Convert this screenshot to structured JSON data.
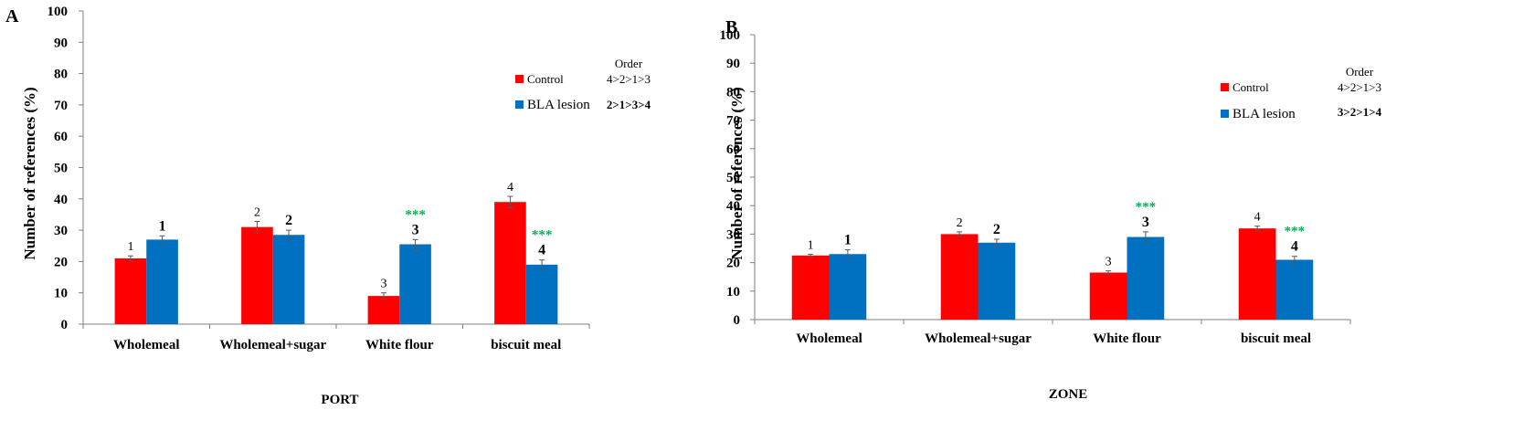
{
  "colors": {
    "control": "#ff0000",
    "lesion": "#0070c0",
    "significance": "#00b050",
    "axis": "#7f7f7f",
    "text": "#000000"
  },
  "chart_data": [
    {
      "type": "bar",
      "panel_label": "A",
      "title": "",
      "xlabel": "PORT",
      "ylabel": "Number of references (%)",
      "ylim": [
        0,
        100
      ],
      "yticks": [
        "0",
        "10",
        "20",
        "30",
        "40",
        "50",
        "60",
        "70",
        "80",
        "90",
        "100"
      ],
      "categories": [
        "Wholemeal",
        "Wholemeal+sugar",
        "White flour",
        "biscuit meal"
      ],
      "series": [
        {
          "name": "Control",
          "values": [
            21,
            31,
            9,
            39
          ],
          "errors": [
            0.8,
            1.8,
            1,
            1.8
          ],
          "labels": [
            "1",
            "2",
            "3",
            "4"
          ]
        },
        {
          "name": "BLA lesion",
          "values": [
            27,
            28.5,
            25.5,
            19
          ],
          "errors": [
            1.2,
            1.5,
            1.5,
            1.5
          ],
          "labels": [
            "1",
            "2",
            "3",
            "4"
          ]
        }
      ],
      "significance": [
        "",
        "",
        "***",
        "***"
      ],
      "legend": {
        "position": "top-right",
        "order_header": "Order",
        "control_order": "4>2>1>3",
        "lesion_order": "2>1>3>4"
      },
      "grid": false
    },
    {
      "type": "bar",
      "panel_label": "B",
      "title": "",
      "xlabel": "ZONE",
      "ylabel": "Number of references (%)",
      "ylim": [
        0,
        100
      ],
      "yticks": [
        "0",
        "10",
        "20",
        "30",
        "40",
        "50",
        "60",
        "70",
        "80",
        "90",
        "100"
      ],
      "categories": [
        "Wholemeal",
        "Wholemeal+sugar",
        "White flour",
        "biscuit meal"
      ],
      "series": [
        {
          "name": "Control",
          "values": [
            22.5,
            30,
            16.5,
            32
          ],
          "errors": [
            0.4,
            0.8,
            0.6,
            0.8
          ],
          "labels": [
            "1",
            "2",
            "3",
            "4"
          ]
        },
        {
          "name": "BLA lesion",
          "values": [
            23,
            27,
            29,
            21
          ],
          "errors": [
            1.5,
            1.2,
            1.8,
            1.2
          ],
          "labels": [
            "1",
            "2",
            "3",
            "4"
          ]
        }
      ],
      "significance": [
        "",
        "",
        "***",
        "***"
      ],
      "legend": {
        "position": "top-right",
        "order_header": "Order",
        "control_order": "4>2>1>3",
        "lesion_order": "3>2>1>4"
      },
      "grid": false
    }
  ]
}
